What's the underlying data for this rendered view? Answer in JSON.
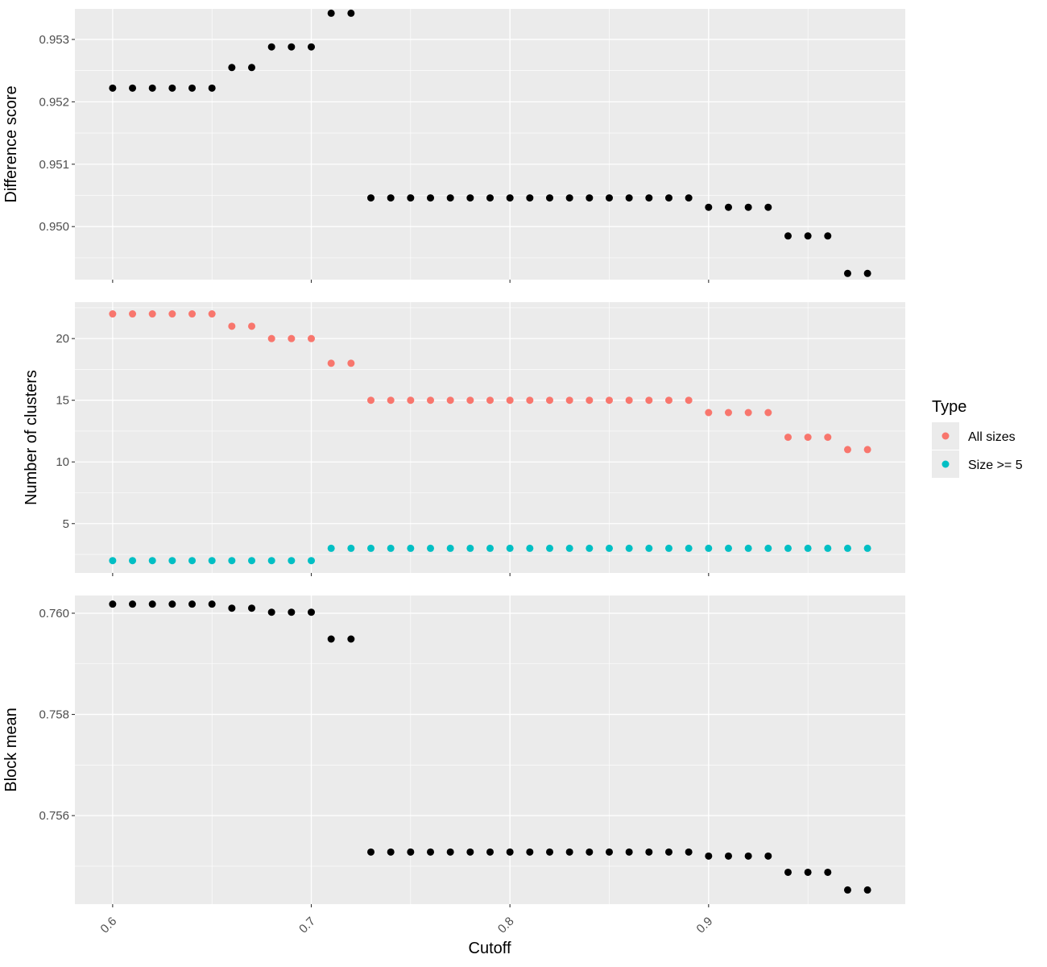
{
  "colors": {
    "panel_bg": "#EBEBEB",
    "grid_major": "#FFFFFF",
    "tick": "#333333",
    "point_black": "#000000",
    "all_sizes": "#F8766D",
    "size_ge_5": "#00BFC4",
    "legend_key_bg": "#EBEBEB"
  },
  "x_axis": {
    "label": "Cutoff",
    "range": [
      0.581,
      0.999
    ],
    "ticks": [
      0.6,
      0.7,
      0.8,
      0.9
    ],
    "tick_labels": [
      "0.6",
      "0.7",
      "0.8",
      "0.9"
    ],
    "tick_label_rotation": "45 degrees"
  },
  "legend": {
    "title": "Type",
    "placement": "right",
    "entries": [
      {
        "label": "All sizes",
        "color": "#F8766D"
      },
      {
        "label": "Size >= 5",
        "color": "#00BFC4"
      }
    ]
  },
  "chart_data": [
    {
      "type": "scatter",
      "panel": "top",
      "ylabel": "Difference score",
      "ylim": [
        0.94915,
        0.95349
      ],
      "yticks": [
        0.95,
        0.951,
        0.952,
        0.953
      ],
      "ytick_labels": [
        "0.950",
        "0.951",
        "0.952",
        "0.953"
      ],
      "x": [
        0.6,
        0.61,
        0.62,
        0.63,
        0.64,
        0.65,
        0.66,
        0.67,
        0.68,
        0.69,
        0.7,
        0.71,
        0.72,
        0.73,
        0.74,
        0.75,
        0.76,
        0.77,
        0.78,
        0.79,
        0.8,
        0.81,
        0.82,
        0.83,
        0.84,
        0.85,
        0.86,
        0.87,
        0.88,
        0.89,
        0.9,
        0.91,
        0.92,
        0.93,
        0.94,
        0.95,
        0.96,
        0.97,
        0.98
      ],
      "series": [
        {
          "color": "#000000",
          "values": [
            0.95222,
            0.95222,
            0.95222,
            0.95222,
            0.95222,
            0.95222,
            0.95255,
            0.95255,
            0.95288,
            0.95288,
            0.95288,
            0.95342,
            0.95342,
            0.95046,
            0.95046,
            0.95046,
            0.95046,
            0.95046,
            0.95046,
            0.95046,
            0.95046,
            0.95046,
            0.95046,
            0.95046,
            0.95046,
            0.95046,
            0.95046,
            0.95046,
            0.95046,
            0.95046,
            0.95031,
            0.95031,
            0.95031,
            0.95031,
            0.94985,
            0.94985,
            0.94985,
            0.94925,
            0.94925
          ]
        }
      ]
    },
    {
      "type": "scatter",
      "panel": "middle",
      "ylabel": "Number of clusters",
      "ylim": [
        1.0,
        22.95
      ],
      "yticks": [
        5,
        10,
        15,
        20
      ],
      "ytick_labels": [
        "5",
        "10",
        "15",
        "20"
      ],
      "x": [
        0.6,
        0.61,
        0.62,
        0.63,
        0.64,
        0.65,
        0.66,
        0.67,
        0.68,
        0.69,
        0.7,
        0.71,
        0.72,
        0.73,
        0.74,
        0.75,
        0.76,
        0.77,
        0.78,
        0.79,
        0.8,
        0.81,
        0.82,
        0.83,
        0.84,
        0.85,
        0.86,
        0.87,
        0.88,
        0.89,
        0.9,
        0.91,
        0.92,
        0.93,
        0.94,
        0.95,
        0.96,
        0.97,
        0.98
      ],
      "series": [
        {
          "name": "All sizes",
          "color": "#F8766D",
          "values": [
            22,
            22,
            22,
            22,
            22,
            22,
            21,
            21,
            20,
            20,
            20,
            18,
            18,
            15,
            15,
            15,
            15,
            15,
            15,
            15,
            15,
            15,
            15,
            15,
            15,
            15,
            15,
            15,
            15,
            15,
            14,
            14,
            14,
            14,
            12,
            12,
            12,
            11,
            11
          ]
        },
        {
          "name": "Size >= 5",
          "color": "#00BFC4",
          "values": [
            2,
            2,
            2,
            2,
            2,
            2,
            2,
            2,
            2,
            2,
            2,
            3,
            3,
            3,
            3,
            3,
            3,
            3,
            3,
            3,
            3,
            3,
            3,
            3,
            3,
            3,
            3,
            3,
            3,
            3,
            3,
            3,
            3,
            3,
            3,
            3,
            3,
            3,
            3
          ]
        }
      ]
    },
    {
      "type": "scatter",
      "panel": "bottom",
      "ylabel": "Block mean",
      "ylim": [
        0.75425,
        0.76035
      ],
      "yticks": [
        0.756,
        0.758,
        0.76
      ],
      "ytick_labels": [
        "0.756",
        "0.758",
        "0.760"
      ],
      "x": [
        0.6,
        0.61,
        0.62,
        0.63,
        0.64,
        0.65,
        0.66,
        0.67,
        0.68,
        0.69,
        0.7,
        0.71,
        0.72,
        0.73,
        0.74,
        0.75,
        0.76,
        0.77,
        0.78,
        0.79,
        0.8,
        0.81,
        0.82,
        0.83,
        0.84,
        0.85,
        0.86,
        0.87,
        0.88,
        0.89,
        0.9,
        0.91,
        0.92,
        0.93,
        0.94,
        0.95,
        0.96,
        0.97,
        0.98
      ],
      "series": [
        {
          "color": "#000000",
          "values": [
            0.76018,
            0.76018,
            0.76018,
            0.76018,
            0.76018,
            0.76018,
            0.7601,
            0.7601,
            0.76002,
            0.76002,
            0.76002,
            0.75949,
            0.75949,
            0.75528,
            0.75528,
            0.75528,
            0.75528,
            0.75528,
            0.75528,
            0.75528,
            0.75528,
            0.75528,
            0.75528,
            0.75528,
            0.75528,
            0.75528,
            0.75528,
            0.75528,
            0.75528,
            0.75528,
            0.7552,
            0.7552,
            0.7552,
            0.7552,
            0.75488,
            0.75488,
            0.75488,
            0.75453,
            0.75453
          ]
        }
      ]
    }
  ]
}
